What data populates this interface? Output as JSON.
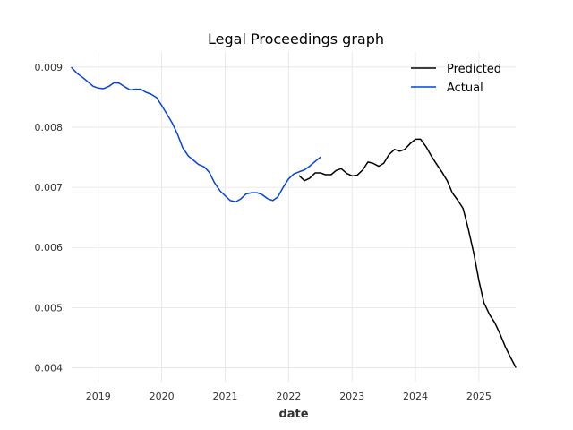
{
  "chart_data": {
    "type": "line",
    "title": "Legal Proceedings graph",
    "xlabel": "date",
    "ylabel": "",
    "xlim": [
      2018.58,
      2025.58
    ],
    "ylim": [
      0.00377,
      0.00925
    ],
    "x_ticks": [
      {
        "value": 2019,
        "label": "2019"
      },
      {
        "value": 2020,
        "label": "2020"
      },
      {
        "value": 2021,
        "label": "2021"
      },
      {
        "value": 2022,
        "label": "2022"
      },
      {
        "value": 2023,
        "label": "2023"
      },
      {
        "value": 2024,
        "label": "2024"
      },
      {
        "value": 2025,
        "label": "2025"
      }
    ],
    "y_ticks": [
      {
        "value": 0.004,
        "label": "0.004"
      },
      {
        "value": 0.005,
        "label": "0.005"
      },
      {
        "value": 0.006,
        "label": "0.006"
      },
      {
        "value": 0.007,
        "label": "0.007"
      },
      {
        "value": 0.008,
        "label": "0.008"
      },
      {
        "value": 0.009,
        "label": "0.009"
      }
    ],
    "grid": true,
    "legend_position": "top-right",
    "series": [
      {
        "name": "Predicted",
        "color": "#000000",
        "x": [
          2022.17,
          2022.25,
          2022.33,
          2022.42,
          2022.5,
          2022.58,
          2022.67,
          2022.75,
          2022.83,
          2022.92,
          2023.0,
          2023.08,
          2023.17,
          2023.25,
          2023.33,
          2023.42,
          2023.5,
          2023.58,
          2023.67,
          2023.75,
          2023.83,
          2023.92,
          2024.0,
          2024.08,
          2024.17,
          2024.25,
          2024.33,
          2024.42,
          2024.5,
          2024.58,
          2024.67,
          2024.75,
          2024.83,
          2024.92,
          2025.0,
          2025.08,
          2025.17,
          2025.25,
          2025.33,
          2025.42,
          2025.5,
          2025.58
        ],
        "y": [
          0.00719,
          0.00711,
          0.00715,
          0.00724,
          0.00724,
          0.00721,
          0.00721,
          0.00728,
          0.00731,
          0.00723,
          0.00719,
          0.0072,
          0.00729,
          0.00742,
          0.0074,
          0.00735,
          0.0074,
          0.00754,
          0.00763,
          0.0076,
          0.00763,
          0.00773,
          0.0078,
          0.0078,
          0.00767,
          0.00752,
          0.00739,
          0.00725,
          0.00711,
          0.00691,
          0.00678,
          0.00665,
          0.00632,
          0.0059,
          0.00545,
          0.00508,
          0.00488,
          0.00475,
          0.00457,
          0.00434,
          0.00417,
          0.00401
        ]
      },
      {
        "name": "Actual",
        "color": "#0343df",
        "x": [
          2018.58,
          2018.67,
          2018.75,
          2018.83,
          2018.92,
          2019.0,
          2019.08,
          2019.17,
          2019.25,
          2019.33,
          2019.42,
          2019.5,
          2019.58,
          2019.67,
          2019.75,
          2019.83,
          2019.92,
          2020.0,
          2020.08,
          2020.17,
          2020.25,
          2020.33,
          2020.42,
          2020.5,
          2020.58,
          2020.67,
          2020.75,
          2020.83,
          2020.92,
          2021.0,
          2021.08,
          2021.17,
          2021.25,
          2021.33,
          2021.42,
          2021.5,
          2021.58,
          2021.67,
          2021.75,
          2021.83,
          2021.92,
          2022.0,
          2022.08,
          2022.17,
          2022.25,
          2022.33,
          2022.42,
          2022.5
        ],
        "y": [
          0.00899,
          0.00889,
          0.00883,
          0.00876,
          0.00868,
          0.00865,
          0.00864,
          0.00868,
          0.00874,
          0.00873,
          0.00867,
          0.00862,
          0.00863,
          0.00863,
          0.00858,
          0.00855,
          0.00849,
          0.00836,
          0.00822,
          0.00806,
          0.00788,
          0.00766,
          0.00752,
          0.00745,
          0.00738,
          0.00734,
          0.00725,
          0.00708,
          0.00694,
          0.00686,
          0.00678,
          0.00676,
          0.00681,
          0.00689,
          0.00691,
          0.00691,
          0.00688,
          0.00681,
          0.00678,
          0.00684,
          0.00701,
          0.00714,
          0.00722,
          0.00726,
          0.00729,
          0.00735,
          0.00743,
          0.0075
        ]
      }
    ]
  }
}
